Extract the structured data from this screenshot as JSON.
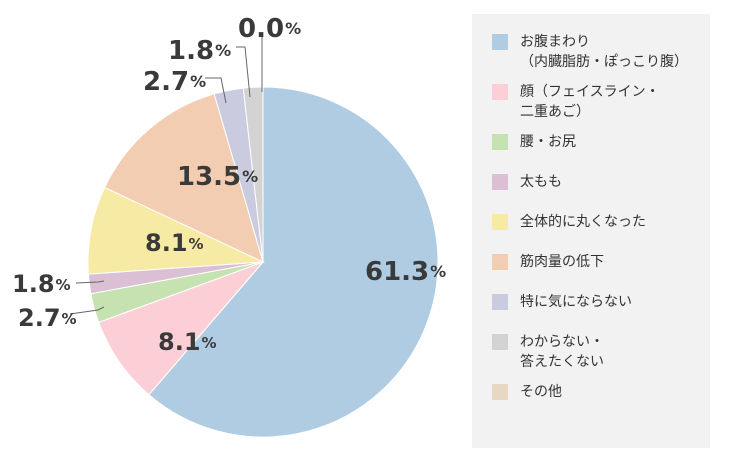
{
  "chart_data": {
    "type": "pie",
    "slices": [
      {
        "label": "お腹まわり\n（内臓脂肪・ぽっこり腹）",
        "value": 61.3,
        "color": "#b0cce3"
      },
      {
        "label": "顔（フェイスライン・\n二重あご）",
        "value": 8.1,
        "color": "#fccfd6"
      },
      {
        "label": "腰・お尻",
        "value": 2.7,
        "color": "#c6e2b0"
      },
      {
        "label": "太もも",
        "value": 1.8,
        "color": "#dbbfd4"
      },
      {
        "label": "全体的に丸くなった",
        "value": 8.1,
        "color": "#f6eaa4"
      },
      {
        "label": "筋肉量の低下",
        "value": 13.5,
        "color": "#f3cdb1"
      },
      {
        "label": "特に気にならない",
        "value": 2.7,
        "color": "#cbcbe0"
      },
      {
        "label": "わからない・\n答えたくない",
        "value": 1.8,
        "color": "#d3d3d3"
      },
      {
        "label": "その他",
        "value": 0.0,
        "color": "#e8d8c3"
      }
    ],
    "value_labels": [
      "61.3",
      "8.1",
      "2.7",
      "1.8",
      "8.1",
      "13.5",
      "2.7",
      "1.8",
      "0.0"
    ],
    "unit": "%",
    "legend_position": "right"
  }
}
